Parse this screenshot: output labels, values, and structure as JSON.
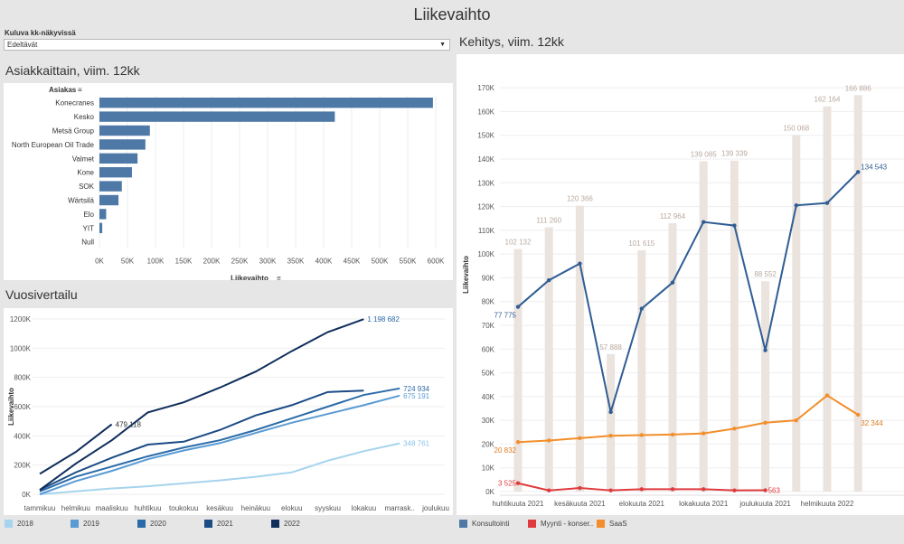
{
  "page": {
    "title": "Liikevaihto"
  },
  "filter": {
    "label": "Kuluva kk-näkyvissä",
    "value": "Edeltävät"
  },
  "sections": {
    "customers": "Asiakkaittain, viim. 12kk",
    "yearly": "Vuosivertailu",
    "trend": "Kehitys, viim. 12kk"
  },
  "colors": {
    "bar": "#4e79a7",
    "y2018": "#a6d4ee",
    "y2019": "#5a9bd4",
    "y2020": "#2c6ba8",
    "y2021": "#1a4b85",
    "y2022": "#0f2e5c",
    "konsultointi": "#2f5d94",
    "myynti": "#e03a3e",
    "saas": "#f28e2b",
    "totalbar": "#ebe3de"
  },
  "legend_years": [
    {
      "label": "2018",
      "color": "#a6d4ee"
    },
    {
      "label": "2019",
      "color": "#5a9bd4"
    },
    {
      "label": "2020",
      "color": "#2c6ba8"
    },
    {
      "label": "2021",
      "color": "#1a4b85"
    },
    {
      "label": "2022",
      "color": "#0f2e5c"
    }
  ],
  "legend_trend": [
    {
      "label": "Konsultointi",
      "color": "#4e79a7"
    },
    {
      "label": "Myynti - konser..",
      "color": "#e03a3e"
    },
    {
      "label": "SaaS",
      "color": "#f28e2b"
    }
  ],
  "chart_data": [
    {
      "type": "bar",
      "orientation": "horizontal",
      "title": "Asiakkaittain, viim. 12kk",
      "row_header": "Asiakas",
      "xlabel": "Liikevaihto",
      "categories": [
        "Konecranes",
        "Kesko",
        "Metsä Group",
        "North European Oil Trade",
        "Valmet",
        "Kone",
        "SOK",
        "Wärtsilä",
        "Elo",
        "YIT",
        "Null"
      ],
      "values": [
        595000,
        420000,
        90000,
        82000,
        68000,
        58000,
        40000,
        34000,
        12000,
        5000,
        0
      ],
      "xlim": [
        0,
        600000
      ],
      "xticks": [
        "0K",
        "50K",
        "100K",
        "150K",
        "200K",
        "250K",
        "300K",
        "350K",
        "400K",
        "450K",
        "500K",
        "550K",
        "600K"
      ]
    },
    {
      "type": "line",
      "title": "Vuosivertailu",
      "ylabel": "Liikevaihto",
      "categories": [
        "tammikuu",
        "helmikuu",
        "maaliskuu",
        "huhtikuu",
        "toukokuu",
        "kesäkuu",
        "heinäkuu",
        "elokuu",
        "syyskuu",
        "lokakuu",
        "marrask..",
        "joulukuu"
      ],
      "ylim": [
        0,
        1200000
      ],
      "yticks": [
        "0K",
        "200K",
        "400K",
        "600K",
        "800K",
        "1000K",
        "1200K"
      ],
      "series": [
        {
          "name": "2018",
          "values": [
            0,
            20000,
            40000,
            55000,
            75000,
            95000,
            120000,
            150000,
            230000,
            295000,
            348761,
            null
          ],
          "end_label": "348 761"
        },
        {
          "name": "2019",
          "values": [
            0,
            90000,
            160000,
            240000,
            300000,
            350000,
            420000,
            490000,
            550000,
            610000,
            675191,
            null
          ],
          "end_label": "675 191"
        },
        {
          "name": "2020",
          "values": [
            20000,
            120000,
            190000,
            260000,
            320000,
            370000,
            440000,
            520000,
            600000,
            680000,
            724934,
            null
          ],
          "end_label": "724 934"
        },
        {
          "name": "2021",
          "values": [
            30000,
            150000,
            250000,
            340000,
            360000,
            440000,
            540000,
            610000,
            700000,
            710000,
            null,
            null
          ],
          "end_label": ""
        },
        {
          "name": "2022",
          "values": [
            140000,
            290000,
            479118,
            null,
            null,
            null,
            null,
            null,
            null,
            null,
            null,
            null
          ],
          "end_label": "479 118"
        },
        {
          "name": "2022b",
          "values": [
            30000,
            210000,
            370000,
            560000,
            630000,
            730000,
            840000,
            980000,
            1110000,
            1198682,
            null,
            null
          ],
          "end_label": "1 198 682"
        }
      ]
    },
    {
      "type": "line",
      "title": "Kehitys, viim. 12kk",
      "ylabel": "Liikevaihto",
      "x": [
        "huhtikuuta 2021",
        "toukokuuta 2021",
        "kesäkuuta 2021",
        "heinäkuuta 2021",
        "elokuuta 2021",
        "syyskuuta 2021",
        "lokakuuta 2021",
        "marraskuuta 2021",
        "joulukuuta 2021",
        "tammikuuta 2022",
        "helmikuuta 2022",
        "maaliskuuta 2022"
      ],
      "x_tick_labels": [
        "huhtikuuta 2021",
        "kesäkuuta 2021",
        "elokuuta 2021",
        "lokakuuta 2021",
        "joulukuuta 2021",
        "helmikuuta 2022"
      ],
      "ylim": [
        0,
        175000
      ],
      "yticks": [
        "0K",
        "10K",
        "20K",
        "30K",
        "40K",
        "50K",
        "60K",
        "70K",
        "80K",
        "90K",
        "100K",
        "110K",
        "120K",
        "130K",
        "140K",
        "150K",
        "160K",
        "170K"
      ],
      "totals": [
        102132,
        111260,
        120366,
        57888,
        101615,
        112964,
        139085,
        139339,
        88552,
        150068,
        162164,
        166886
      ],
      "total_labels": [
        "102 132",
        "111 260",
        "120 366",
        "57 888",
        "101 615",
        "112 964",
        "139 085",
        "139 339",
        "88 552",
        "150 068",
        "162 164",
        "166 886"
      ],
      "series": [
        {
          "name": "Konsultointi",
          "values": [
            77775,
            89000,
            96000,
            33500,
            77000,
            88000,
            113500,
            112000,
            59500,
            120500,
            121500,
            134543
          ],
          "first_label": "77 775",
          "last_label": "134 543"
        },
        {
          "name": "Myynti - konser..",
          "values": [
            3525,
            500,
            1500,
            500,
            1000,
            1000,
            1000,
            500,
            563,
            null,
            null,
            null
          ],
          "first_label": "3 525",
          "last_label": "563"
        },
        {
          "name": "SaaS",
          "values": [
            20832,
            21500,
            22500,
            23500,
            23800,
            24000,
            24500,
            26500,
            29000,
            30000,
            40500,
            32344
          ],
          "first_label": "20 832",
          "last_label": "32 344"
        }
      ]
    }
  ]
}
